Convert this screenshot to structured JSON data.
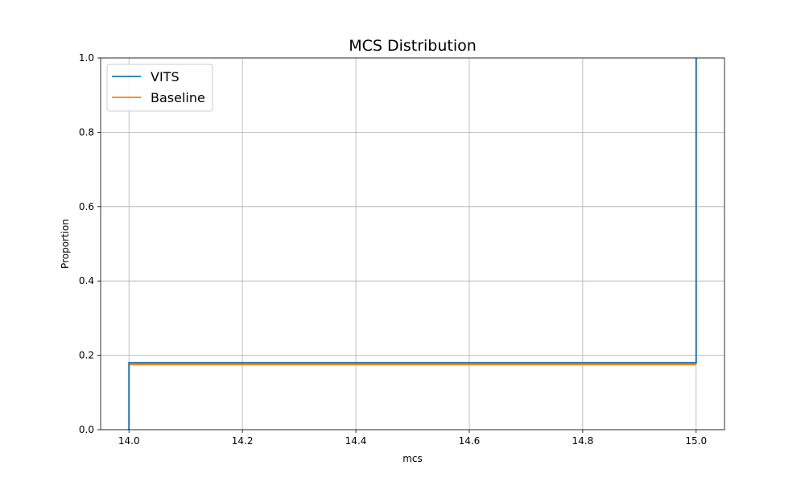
{
  "chart_data": {
    "type": "line",
    "step": true,
    "title": "MCS Distribution",
    "xlabel": "mcs",
    "ylabel": "Proportion",
    "xlim": [
      13.95,
      15.05
    ],
    "ylim": [
      0.0,
      1.0
    ],
    "x_ticks": [
      14.0,
      14.2,
      14.4,
      14.6,
      14.8,
      15.0
    ],
    "x_tick_labels": [
      "14.0",
      "14.2",
      "14.4",
      "14.6",
      "14.8",
      "15.0"
    ],
    "y_ticks": [
      0.0,
      0.2,
      0.4,
      0.6,
      0.8,
      1.0
    ],
    "y_tick_labels": [
      "0.0",
      "0.2",
      "0.4",
      "0.6",
      "0.8",
      "1.0"
    ],
    "grid": true,
    "legend_position": "top-left",
    "series": [
      {
        "name": "VITS",
        "color": "#1f77b4",
        "x": [
          14.0,
          14.0,
          15.0,
          15.0
        ],
        "y": [
          0.0,
          0.18,
          0.18,
          1.0
        ]
      },
      {
        "name": "Baseline",
        "color": "#ff7f0e",
        "x": [
          14.0,
          15.0
        ],
        "y": [
          0.175,
          0.175
        ]
      }
    ]
  }
}
